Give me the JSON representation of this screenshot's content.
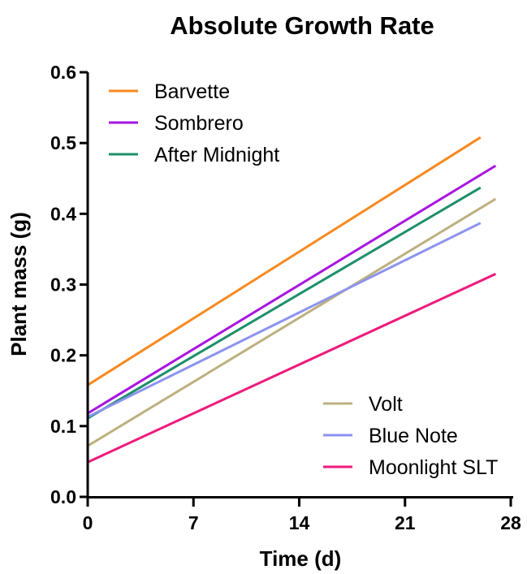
{
  "chart_data": {
    "type": "line",
    "title": "Absolute Growth Rate",
    "xlabel": "Time (d)",
    "ylabel": "Plant mass (g)",
    "xlim": [
      0,
      28
    ],
    "ylim": [
      0,
      0.6
    ],
    "x_ticks": [
      "0",
      "7",
      "14",
      "21",
      "28"
    ],
    "y_ticks": [
      "0.0",
      "0.1",
      "0.2",
      "0.3",
      "0.4",
      "0.5",
      "0.6"
    ],
    "grid": false,
    "series": [
      {
        "name": "Barvette",
        "color": "#f7891f",
        "x": [
          0,
          26
        ],
        "y": [
          0.158,
          0.508
        ],
        "legend_group": "top-left"
      },
      {
        "name": "Sombrero",
        "color": "#a815e0",
        "x": [
          0,
          27
        ],
        "y": [
          0.118,
          0.468
        ],
        "legend_group": "top-left"
      },
      {
        "name": "After Midnight",
        "color": "#1d8f6b",
        "x": [
          0,
          26
        ],
        "y": [
          0.111,
          0.437
        ],
        "legend_group": "top-left"
      },
      {
        "name": "Volt",
        "color": "#bdb07f",
        "x": [
          0,
          27
        ],
        "y": [
          0.072,
          0.421
        ],
        "legend_group": "bottom-right"
      },
      {
        "name": "Blue Note",
        "color": "#8c93ee",
        "x": [
          0,
          26
        ],
        "y": [
          0.113,
          0.387
        ],
        "legend_group": "bottom-right"
      },
      {
        "name": "Moonlight SLT",
        "color": "#ed1a7c",
        "x": [
          0,
          27
        ],
        "y": [
          0.049,
          0.315
        ],
        "legend_group": "bottom-right"
      }
    ]
  }
}
